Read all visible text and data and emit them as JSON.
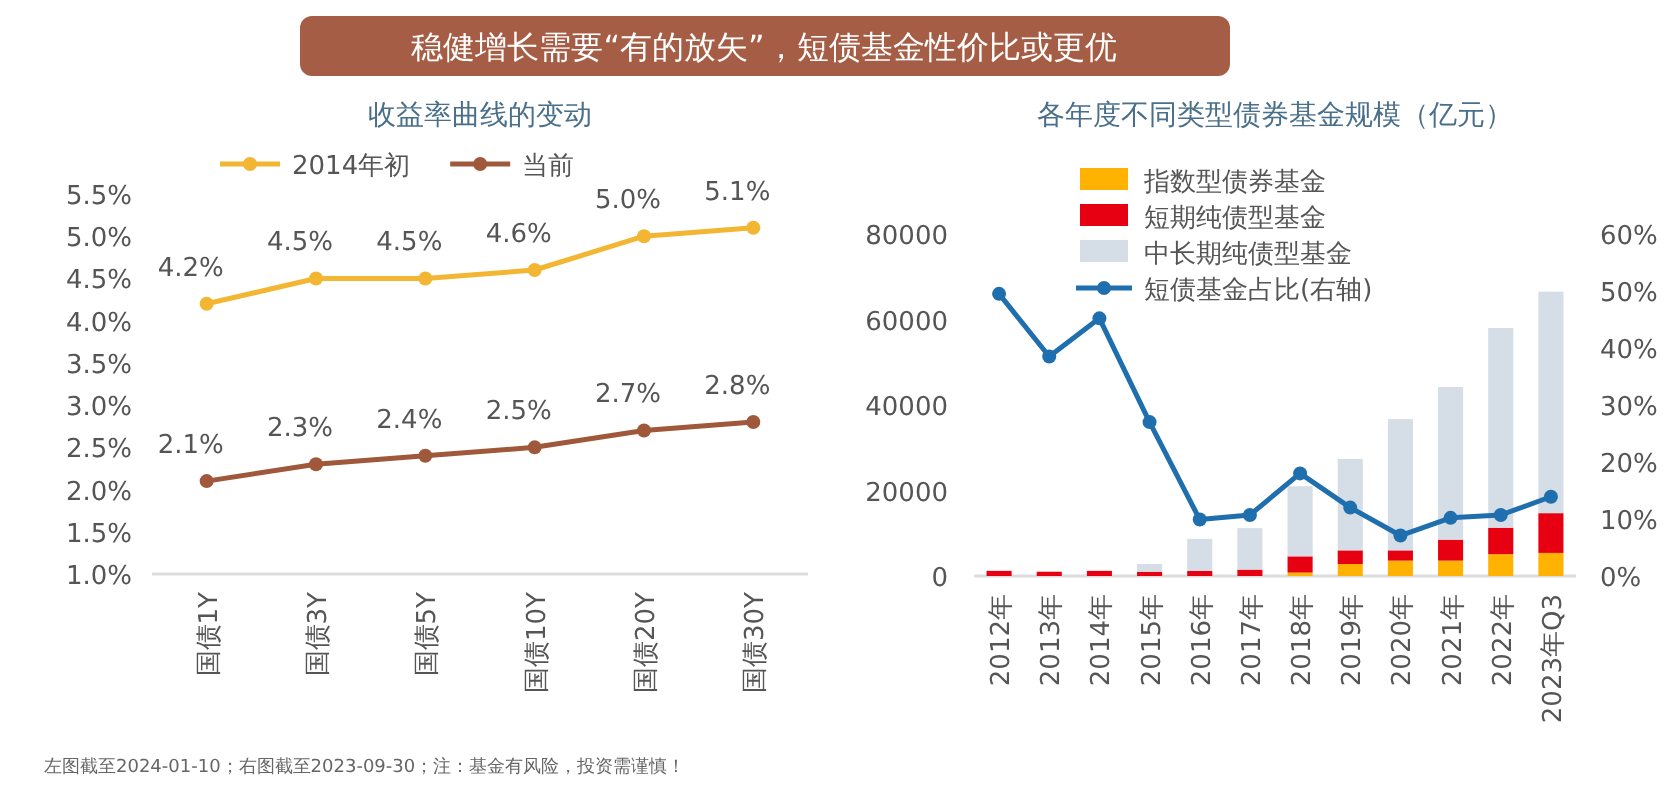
{
  "chart_data": [
    {
      "type": "line",
      "title": "稳健增长需要“有的放矢”，短债基金性价比或更优",
      "subtitle": "收益率曲线的变动",
      "categories": [
        "国债1Y",
        "国债3Y",
        "国债5Y",
        "国债10Y",
        "国债20Y",
        "国债30Y"
      ],
      "series": [
        {
          "name": "2014年初",
          "color": "#f2b632",
          "values": [
            4.2,
            4.5,
            4.5,
            4.6,
            5.0,
            5.1
          ],
          "value_labels": [
            "4.2%",
            "4.5%",
            "4.5%",
            "4.6%",
            "5.0%",
            "5.1%"
          ]
        },
        {
          "name": "当前",
          "color": "#a0583a",
          "values": [
            2.1,
            2.3,
            2.4,
            2.5,
            2.7,
            2.8
          ],
          "value_labels": [
            "2.1%",
            "2.3%",
            "2.4%",
            "2.5%",
            "2.7%",
            "2.8%"
          ]
        }
      ],
      "ylim": [
        1.0,
        5.5
      ],
      "yticks": [
        {
          "value": 1.0,
          "label": "1.0%"
        },
        {
          "value": 1.5,
          "label": "1.5%"
        },
        {
          "value": 2.0,
          "label": "2.0%"
        },
        {
          "value": 2.5,
          "label": "2.5%"
        },
        {
          "value": 3.0,
          "label": "3.0%"
        },
        {
          "value": 3.5,
          "label": "3.5%"
        },
        {
          "value": 4.0,
          "label": "4.0%"
        },
        {
          "value": 4.5,
          "label": "4.5%"
        },
        {
          "value": 5.0,
          "label": "5.0%"
        },
        {
          "value": 5.5,
          "label": "5.5%"
        }
      ],
      "legend": "top",
      "marker": "circle",
      "annotations": [
        "左图截至2024-01-10；右图截至2023-09-30；注：基金有风险，投资需谨慎！"
      ]
    },
    {
      "type": "bar",
      "title": "各年度不同类型债券基金规模（亿元）",
      "stacked": true,
      "categories": [
        "2012年",
        "2013年",
        "2014年",
        "2015年",
        "2016年",
        "2017年",
        "2018年",
        "2019年",
        "2020年",
        "2021年",
        "2022年",
        "2023年Q3"
      ],
      "series": [
        {
          "name": "指数型债券基金",
          "color": "#ffb300",
          "values": [
            0,
            0,
            0,
            0,
            0,
            0,
            800,
            2800,
            3600,
            3600,
            5100,
            5400
          ]
        },
        {
          "name": "短期纯债型基金",
          "color": "#e60012",
          "values": [
            1200,
            1000,
            1200,
            1000,
            1200,
            1500,
            3800,
            3200,
            2400,
            4900,
            6200,
            9300
          ]
        },
        {
          "name": "中长期纯债型基金",
          "color": "#d5dde6",
          "values": [
            0,
            0,
            0,
            1800,
            7500,
            9700,
            16400,
            21400,
            30700,
            35700,
            46700,
            51800
          ]
        },
        {
          "name": "短债基金占比(右轴)",
          "type": "line",
          "axis": "y2",
          "color": "#1f6fae",
          "values": [
            49.5,
            38.5,
            45.2,
            27,
            9.9,
            10.7,
            18,
            12,
            7.1,
            10.2,
            10.7,
            13.9
          ]
        }
      ],
      "ylim": [
        0,
        80000
      ],
      "yticks": [
        0,
        20000,
        40000,
        60000,
        80000
      ],
      "y2lim": [
        0,
        60
      ],
      "y2ticks": [
        {
          "value": 0,
          "label": "0%"
        },
        {
          "value": 10,
          "label": "10%"
        },
        {
          "value": 20,
          "label": "20%"
        },
        {
          "value": 30,
          "label": "30%"
        },
        {
          "value": 40,
          "label": "40%"
        },
        {
          "value": 50,
          "label": "50%"
        },
        {
          "value": 60,
          "label": "60%"
        }
      ],
      "legend": "top",
      "marker": "circle"
    }
  ]
}
